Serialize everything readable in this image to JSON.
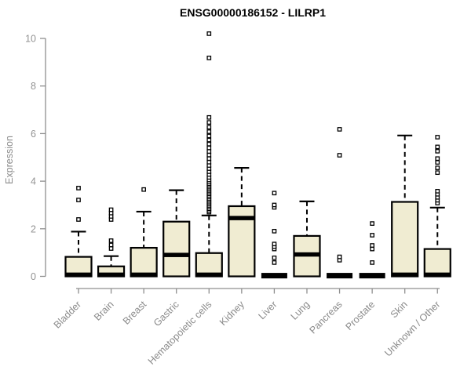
{
  "chart_data": {
    "type": "boxplot",
    "title": "ENSG00000186152 - LILRP1",
    "ylabel": "Expression",
    "xlabel": "",
    "ylim": [
      0,
      10.4
    ],
    "yticks": [
      0,
      2,
      4,
      6,
      8,
      10
    ],
    "grid": false,
    "legend": "none",
    "categories": [
      "Bladder",
      "Brain",
      "Breast",
      "Gastric",
      "Hematopoietic cells",
      "Kidney",
      "Liver",
      "Lung",
      "Pancreas",
      "Prostate",
      "Skin",
      "Unknown / Other"
    ],
    "series": [
      {
        "name": "Bladder",
        "whisker_low": 0,
        "q1": 0,
        "median": 0.07,
        "q3": 0.82,
        "whisker_high": 1.88,
        "outliers": [
          2.39,
          3.21,
          3.71
        ]
      },
      {
        "name": "Brain",
        "whisker_low": 0,
        "q1": 0,
        "median": 0.07,
        "q3": 0.42,
        "whisker_high": 0.85,
        "outliers": [
          1.17,
          1.32,
          1.5,
          2.39,
          2.52,
          2.66,
          2.8
        ]
      },
      {
        "name": "Breast",
        "whisker_low": 0,
        "q1": 0,
        "median": 0.07,
        "q3": 1.2,
        "whisker_high": 2.72,
        "outliers": [
          3.65
        ]
      },
      {
        "name": "Gastric",
        "whisker_low": 0,
        "q1": 0,
        "median": 0.9,
        "q3": 2.3,
        "whisker_high": 3.62,
        "outliers": []
      },
      {
        "name": "Hematopoietic cells",
        "whisker_low": 0,
        "q1": 0,
        "median": 0.07,
        "q3": 0.98,
        "whisker_high": 2.56,
        "outliers": [
          2.7,
          2.77,
          2.84,
          2.91,
          2.98,
          3.05,
          3.12,
          3.19,
          3.26,
          3.33,
          3.4,
          3.47,
          3.54,
          3.61,
          3.68,
          3.75,
          3.82,
          3.89,
          3.96,
          4.05,
          4.16,
          4.28,
          4.4,
          4.53,
          4.66,
          4.8,
          4.95,
          5.1,
          5.25,
          5.4,
          5.56,
          5.73,
          5.9,
          6.08,
          6.27,
          6.47,
          6.68,
          9.18,
          10.2
        ]
      },
      {
        "name": "Kidney",
        "whisker_low": 0,
        "q1": 0,
        "median": 2.45,
        "q3": 2.95,
        "whisker_high": 4.56,
        "outliers": []
      },
      {
        "name": "Liver",
        "whisker_low": 0,
        "q1": 0,
        "median": 0.03,
        "q3": 0.05,
        "whisker_high": 0.05,
        "outliers": [
          0.58,
          0.78,
          1.15,
          1.25,
          1.36,
          1.9,
          2.9,
          3.0,
          3.5
        ]
      },
      {
        "name": "Lung",
        "whisker_low": 0,
        "q1": 0,
        "median": 0.92,
        "q3": 1.7,
        "whisker_high": 3.15,
        "outliers": []
      },
      {
        "name": "Pancreas",
        "whisker_low": 0,
        "q1": 0,
        "median": 0.03,
        "q3": 0.05,
        "whisker_high": 0.05,
        "outliers": [
          0.68,
          0.82,
          5.09,
          6.18
        ]
      },
      {
        "name": "Prostate",
        "whisker_low": 0,
        "q1": 0,
        "median": 0.03,
        "q3": 0.05,
        "whisker_high": 0.05,
        "outliers": [
          0.58,
          1.15,
          1.3,
          1.73,
          2.22
        ]
      },
      {
        "name": "Skin",
        "whisker_low": 0,
        "q1": 0,
        "median": 0.07,
        "q3": 3.13,
        "whisker_high": 5.92,
        "outliers": []
      },
      {
        "name": "Unknown / Other",
        "whisker_low": 0,
        "q1": 0,
        "median": 0.07,
        "q3": 1.15,
        "whisker_high": 2.89,
        "outliers": [
          3.08,
          3.2,
          3.32,
          3.45,
          3.58,
          4.36,
          4.56,
          4.79,
          4.95,
          5.26,
          5.44,
          5.85
        ]
      }
    ]
  },
  "colors": {
    "background": "#ffffff",
    "box_fill": "#f0ecd2",
    "box_stroke": "#000000",
    "median": "#000000",
    "whisker": "#000000",
    "outlier_stroke": "#000000",
    "outlier_fill": "#ffffff",
    "axis": "#8f8f8f",
    "tick_label": "#939393",
    "category_label": "#8a8a8a",
    "title": "#000000"
  }
}
